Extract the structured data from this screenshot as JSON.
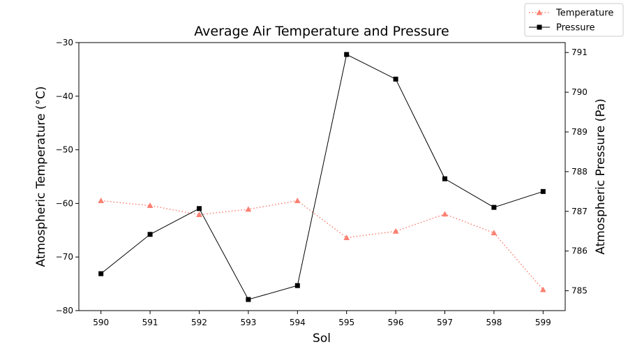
{
  "chart_data": {
    "type": "line",
    "title": "Average Air Temperature and Pressure",
    "xlabel": "Sol",
    "x": [
      590,
      591,
      592,
      593,
      594,
      595,
      596,
      597,
      598,
      599
    ],
    "xlim": [
      589.55,
      599.45
    ],
    "y_left": {
      "label": "Atmospheric Temperature (°C)",
      "ylim": [
        -80,
        -30
      ],
      "ticks": [
        -80,
        -70,
        -60,
        -50,
        -40,
        -30
      ]
    },
    "y_right": {
      "label": "Atmospheric Pressure (Pa)",
      "ylim": [
        784.5,
        791.25
      ],
      "ticks": [
        785,
        786,
        787,
        788,
        789,
        790,
        791
      ]
    },
    "legend_position": "top-right",
    "series": [
      {
        "name": "Temperature",
        "axis": "left",
        "color": "#fa8072",
        "line_style": "dotted",
        "marker": "triangle",
        "values": [
          -59.5,
          -60.4,
          -62.1,
          -61.1,
          -59.5,
          -66.4,
          -65.2,
          -62.0,
          -65.5,
          -76.1
        ]
      },
      {
        "name": "Pressure",
        "axis": "right",
        "color": "#000000",
        "line_style": "solid",
        "marker": "square",
        "values": [
          785.43,
          786.42,
          787.07,
          784.78,
          785.13,
          790.95,
          790.33,
          787.82,
          787.1,
          787.5
        ]
      }
    ]
  }
}
